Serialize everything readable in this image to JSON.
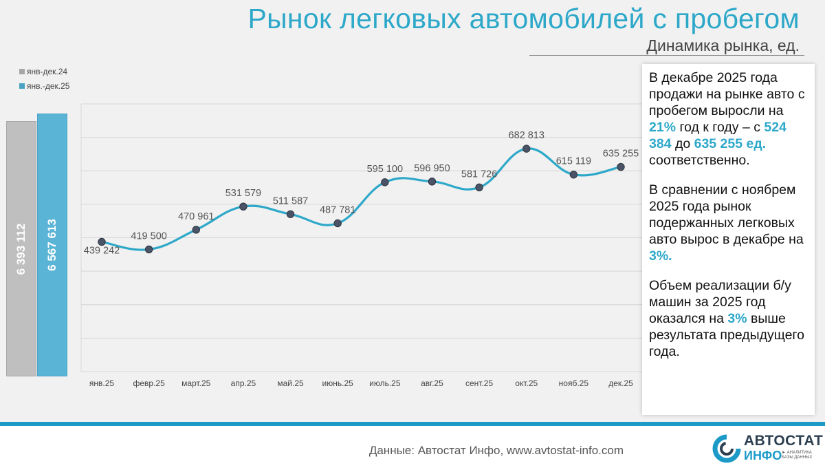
{
  "title": "Рынок легковых автомобилей с пробегом",
  "subtitle": "Динамика рынка, ед.",
  "colors": {
    "accent": "#2da8c9",
    "prev_total": "#bfbfbf",
    "cur_total": "#5ab4d6",
    "line": "#2da8c9",
    "marker": "#4a5466"
  },
  "legend": [
    {
      "label": "янв-дек.24",
      "color": "#a6a6a6"
    },
    {
      "label": "янв.-дек.25",
      "color": "#4aa3c4"
    }
  ],
  "totals": {
    "prev": {
      "label": "6 393 112",
      "value": 6393112
    },
    "cur": {
      "label": "6 567 613",
      "value": 6567613
    }
  },
  "chart_data": {
    "type": "line",
    "categories": [
      "янв.25",
      "февр.25",
      "март.25",
      "апр.25",
      "май.25",
      "июнь.25",
      "июль.25",
      "авг.25",
      "сент.25",
      "окт.25",
      "нояб.25",
      "дек.25"
    ],
    "values": [
      439242,
      419500,
      470961,
      531579,
      511587,
      487781,
      595100,
      596950,
      581726,
      682813,
      615119,
      635255
    ],
    "value_labels": [
      "439 242",
      "419 500",
      "470 961",
      "531 579",
      "511 587",
      "487 781",
      "595 100",
      "596 950",
      "581 726",
      "682 813",
      "615 119",
      "635 255"
    ],
    "grid": true,
    "smooth": true,
    "ylim": [
      100000,
      800000
    ]
  },
  "info": {
    "p1": {
      "t1": "В декабре 2025 года продажи на рынке авто с пробегом выросли на ",
      "h1": "21%",
      "t2": " год к году – с ",
      "h2": "524 384",
      "t3": " до ",
      "h3": "635 255 ед.",
      "t4": " соответственно."
    },
    "p2": {
      "t1": "В сравнении с ноябрем 2025 года рынок подержанных легковых авто вырос в декабре на ",
      "h1": "3%."
    },
    "p3": {
      "t1": "Объем реализации б/у машин за 2025 год оказался на ",
      "h1": "3%",
      "t2": " выше результата предыдущего года."
    }
  },
  "footer": {
    "source": "Данные: Автостат Инфо, www.avtostat-info.com"
  },
  "logo": {
    "brand_line1": "АВТОСТАТ",
    "brand_line2": "ИНФО",
    "tagline": "► АНАЛИТИКА БАЗЫ ДАННЫХ"
  }
}
